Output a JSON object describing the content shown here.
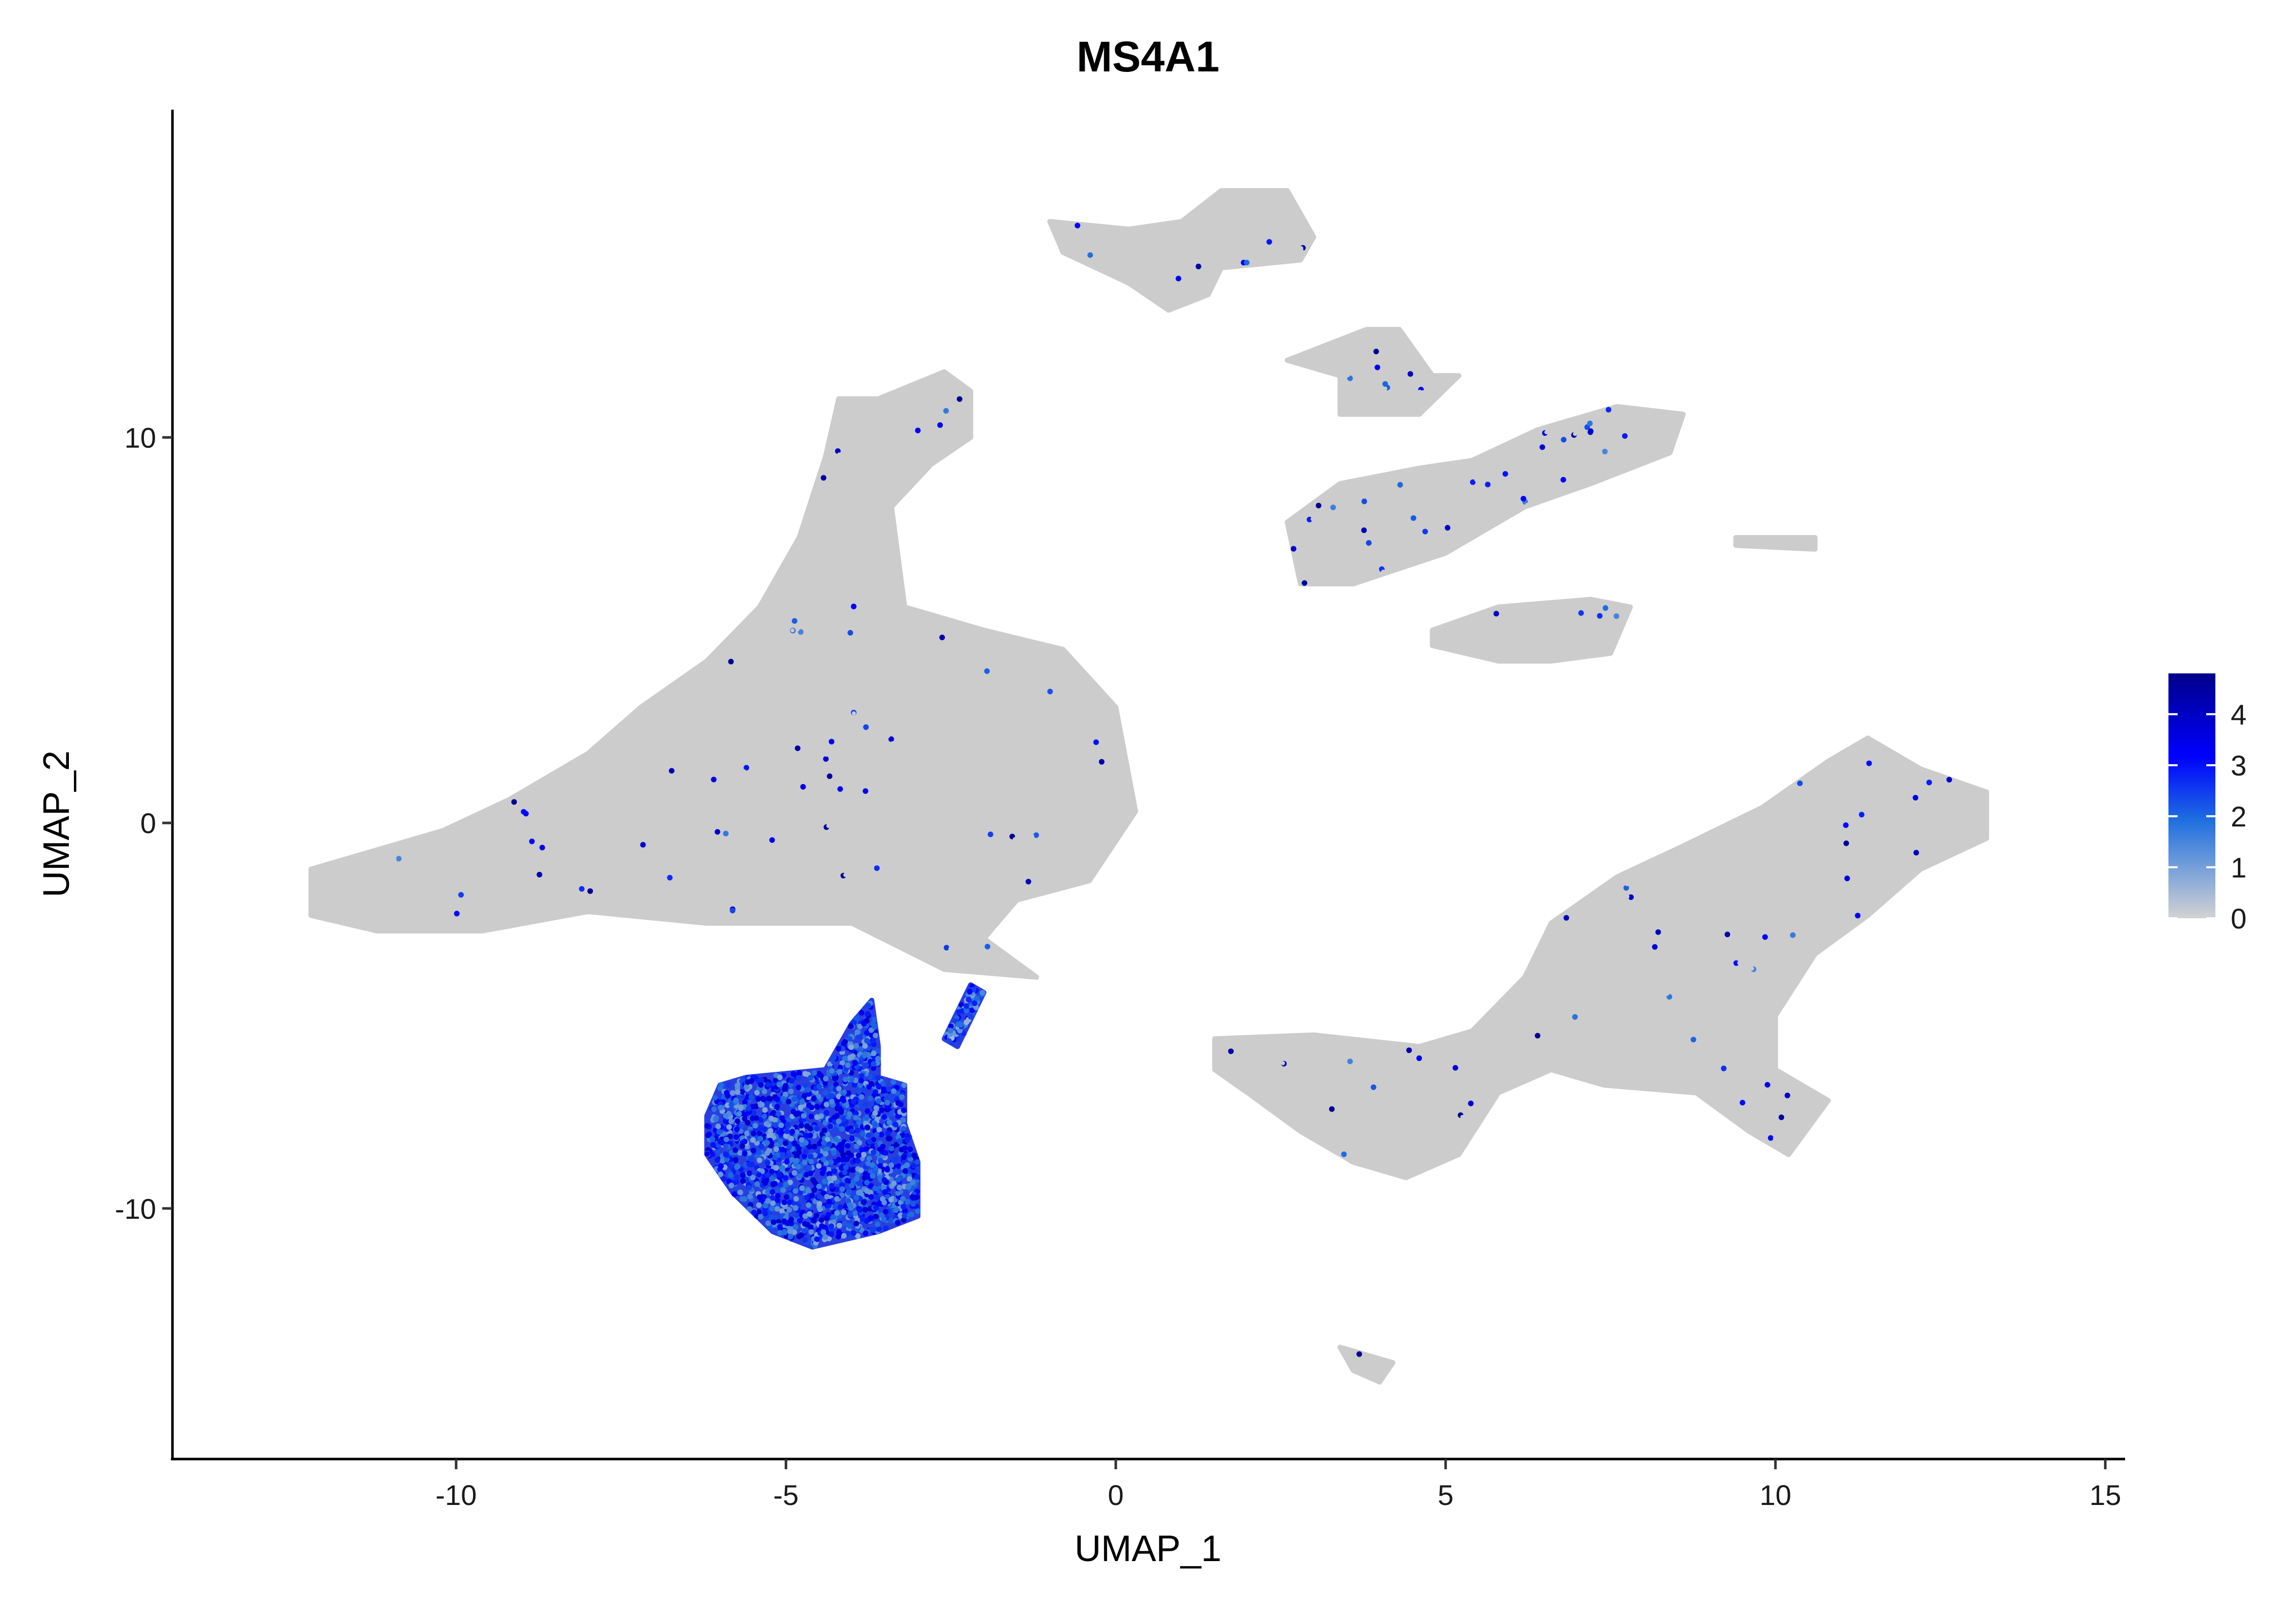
{
  "chart_data": {
    "type": "scatter",
    "title": "MS4A1",
    "xlabel": "UMAP_1",
    "ylabel": "UMAP_2",
    "xlim": [
      -14.3,
      15.3
    ],
    "ylim": [
      -16.5,
      18.5
    ],
    "x_ticks": [
      -10,
      -5,
      0,
      5,
      10,
      15
    ],
    "x_tick_labels": [
      "-10",
      "-5",
      "0",
      "5",
      "10",
      "15"
    ],
    "y_ticks": [
      10,
      0,
      -10
    ],
    "y_tick_labels": [
      "10",
      "0",
      "-10"
    ],
    "grid": false,
    "legend": {
      "placement": "right",
      "type": "colorbar",
      "range": [
        0,
        4.8
      ],
      "ticks": [
        0,
        1,
        2,
        3,
        4
      ],
      "tick_labels": [
        "0",
        "1",
        "2",
        "3",
        "4"
      ],
      "colors": {
        "low": "#d3d3d3",
        "mid": "#1f6fe0",
        "high": "#0000cd",
        "max": "#00008b"
      }
    },
    "background_color": "#cccccc",
    "clusters": [
      {
        "id": "main-left-cluster",
        "outline": [
          [
            -12.2,
            -1.2
          ],
          [
            -11.4,
            -0.8
          ],
          [
            -10.2,
            -0.2
          ],
          [
            -9.2,
            0.6
          ],
          [
            -8.0,
            1.8
          ],
          [
            -7.2,
            3.0
          ],
          [
            -6.2,
            4.2
          ],
          [
            -5.4,
            5.6
          ],
          [
            -4.8,
            7.4
          ],
          [
            -4.4,
            9.5
          ],
          [
            -4.2,
            11.0
          ],
          [
            -3.6,
            11.0
          ],
          [
            -2.6,
            11.7
          ],
          [
            -2.2,
            11.2
          ],
          [
            -2.2,
            10.0
          ],
          [
            -2.8,
            9.3
          ],
          [
            -3.4,
            8.2
          ],
          [
            -3.2,
            5.6
          ],
          [
            -2.0,
            5.0
          ],
          [
            -0.8,
            4.5
          ],
          [
            0.0,
            3.0
          ],
          [
            0.3,
            0.3
          ],
          [
            -0.4,
            -1.5
          ],
          [
            -1.5,
            -2.0
          ],
          [
            -2.0,
            -3.0
          ],
          [
            -1.2,
            -4.0
          ],
          [
            -2.6,
            -3.8
          ],
          [
            -4.0,
            -2.6
          ],
          [
            -6.2,
            -2.6
          ],
          [
            -8.0,
            -2.3
          ],
          [
            -9.6,
            -2.8
          ],
          [
            -11.2,
            -2.8
          ],
          [
            -12.2,
            -2.4
          ]
        ],
        "expr_mean": 0.08
      },
      {
        "id": "b-cell-cluster",
        "outline": [
          [
            -6.0,
            -6.8
          ],
          [
            -5.6,
            -6.6
          ],
          [
            -4.4,
            -6.4
          ],
          [
            -4.0,
            -5.2
          ],
          [
            -3.7,
            -4.6
          ],
          [
            -3.6,
            -5.8
          ],
          [
            -3.6,
            -6.6
          ],
          [
            -3.2,
            -6.8
          ],
          [
            -3.2,
            -7.8
          ],
          [
            -3.0,
            -8.8
          ],
          [
            -3.0,
            -10.2
          ],
          [
            -3.6,
            -10.6
          ],
          [
            -4.6,
            -11.0
          ],
          [
            -5.2,
            -10.6
          ],
          [
            -5.8,
            -9.6
          ],
          [
            -6.2,
            -8.6
          ],
          [
            -6.2,
            -7.6
          ]
        ],
        "expr_mean": 2.4
      },
      {
        "id": "b-cell-stream",
        "outline": [
          [
            -2.2,
            -4.2
          ],
          [
            -2.0,
            -4.4
          ],
          [
            -2.4,
            -5.8
          ],
          [
            -2.6,
            -5.6
          ]
        ],
        "expr_mean": 2.0
      },
      {
        "id": "top-cluster",
        "outline": [
          [
            -1.0,
            15.6
          ],
          [
            0.2,
            15.4
          ],
          [
            1.0,
            15.6
          ],
          [
            1.6,
            16.4
          ],
          [
            2.6,
            16.4
          ],
          [
            3.0,
            15.2
          ],
          [
            2.8,
            14.6
          ],
          [
            1.6,
            14.4
          ],
          [
            1.4,
            13.7
          ],
          [
            0.8,
            13.3
          ],
          [
            0.2,
            14.0
          ],
          [
            -0.8,
            14.8
          ]
        ],
        "expr_mean": 0.05
      },
      {
        "id": "upper-mid-cluster",
        "outline": [
          [
            2.6,
            12.0
          ],
          [
            3.8,
            12.8
          ],
          [
            4.3,
            12.8
          ],
          [
            4.8,
            11.6
          ],
          [
            5.2,
            11.6
          ],
          [
            4.6,
            10.6
          ],
          [
            3.4,
            10.6
          ],
          [
            3.4,
            11.6
          ]
        ],
        "expr_mean": 0.05
      },
      {
        "id": "right-upper-cluster",
        "outline": [
          [
            2.6,
            7.8
          ],
          [
            3.4,
            8.8
          ],
          [
            4.6,
            9.2
          ],
          [
            5.4,
            9.4
          ],
          [
            6.4,
            10.2
          ],
          [
            7.6,
            10.8
          ],
          [
            8.6,
            10.6
          ],
          [
            8.4,
            9.6
          ],
          [
            7.2,
            8.8
          ],
          [
            6.2,
            8.2
          ],
          [
            5.0,
            7.0
          ],
          [
            3.6,
            6.2
          ],
          [
            2.8,
            6.2
          ]
        ],
        "expr_mean": 0.05
      },
      {
        "id": "small-oval-cluster",
        "outline": [
          [
            4.8,
            5.0
          ],
          [
            5.8,
            5.6
          ],
          [
            7.2,
            5.8
          ],
          [
            7.8,
            5.6
          ],
          [
            7.5,
            4.4
          ],
          [
            6.6,
            4.2
          ],
          [
            5.8,
            4.2
          ],
          [
            4.8,
            4.6
          ]
        ],
        "expr_mean": 0.08
      },
      {
        "id": "tiny-strip",
        "outline": [
          [
            9.4,
            7.4
          ],
          [
            10.6,
            7.4
          ],
          [
            10.6,
            7.1
          ],
          [
            9.4,
            7.2
          ]
        ],
        "expr_mean": 0.02
      },
      {
        "id": "bottom-right-cluster",
        "outline": [
          [
            1.5,
            -5.6
          ],
          [
            3.0,
            -5.5
          ],
          [
            4.6,
            -5.8
          ],
          [
            5.4,
            -5.4
          ],
          [
            6.2,
            -4.0
          ],
          [
            6.6,
            -2.6
          ],
          [
            7.6,
            -1.4
          ],
          [
            8.6,
            -0.6
          ],
          [
            9.8,
            0.4
          ],
          [
            10.8,
            1.6
          ],
          [
            11.4,
            2.2
          ],
          [
            12.2,
            1.4
          ],
          [
            13.2,
            0.8
          ],
          [
            13.2,
            -0.4
          ],
          [
            12.2,
            -1.2
          ],
          [
            11.4,
            -2.4
          ],
          [
            10.6,
            -3.4
          ],
          [
            10.0,
            -5.0
          ],
          [
            10.0,
            -6.4
          ],
          [
            10.8,
            -7.2
          ],
          [
            10.2,
            -8.6
          ],
          [
            9.6,
            -8.0
          ],
          [
            8.8,
            -7.0
          ],
          [
            7.4,
            -6.8
          ],
          [
            6.6,
            -6.4
          ],
          [
            5.8,
            -7.0
          ],
          [
            5.2,
            -8.6
          ],
          [
            4.4,
            -9.2
          ],
          [
            3.6,
            -8.8
          ],
          [
            2.8,
            -8.0
          ],
          [
            2.0,
            -7.0
          ],
          [
            1.5,
            -6.4
          ]
        ],
        "expr_mean": 0.05
      },
      {
        "id": "bottom-small-cluster",
        "outline": [
          [
            3.4,
            -13.6
          ],
          [
            3.8,
            -13.8
          ],
          [
            4.2,
            -14.0
          ],
          [
            4.0,
            -14.5
          ],
          [
            3.6,
            -14.2
          ]
        ],
        "expr_mean": 0.3
      }
    ]
  }
}
